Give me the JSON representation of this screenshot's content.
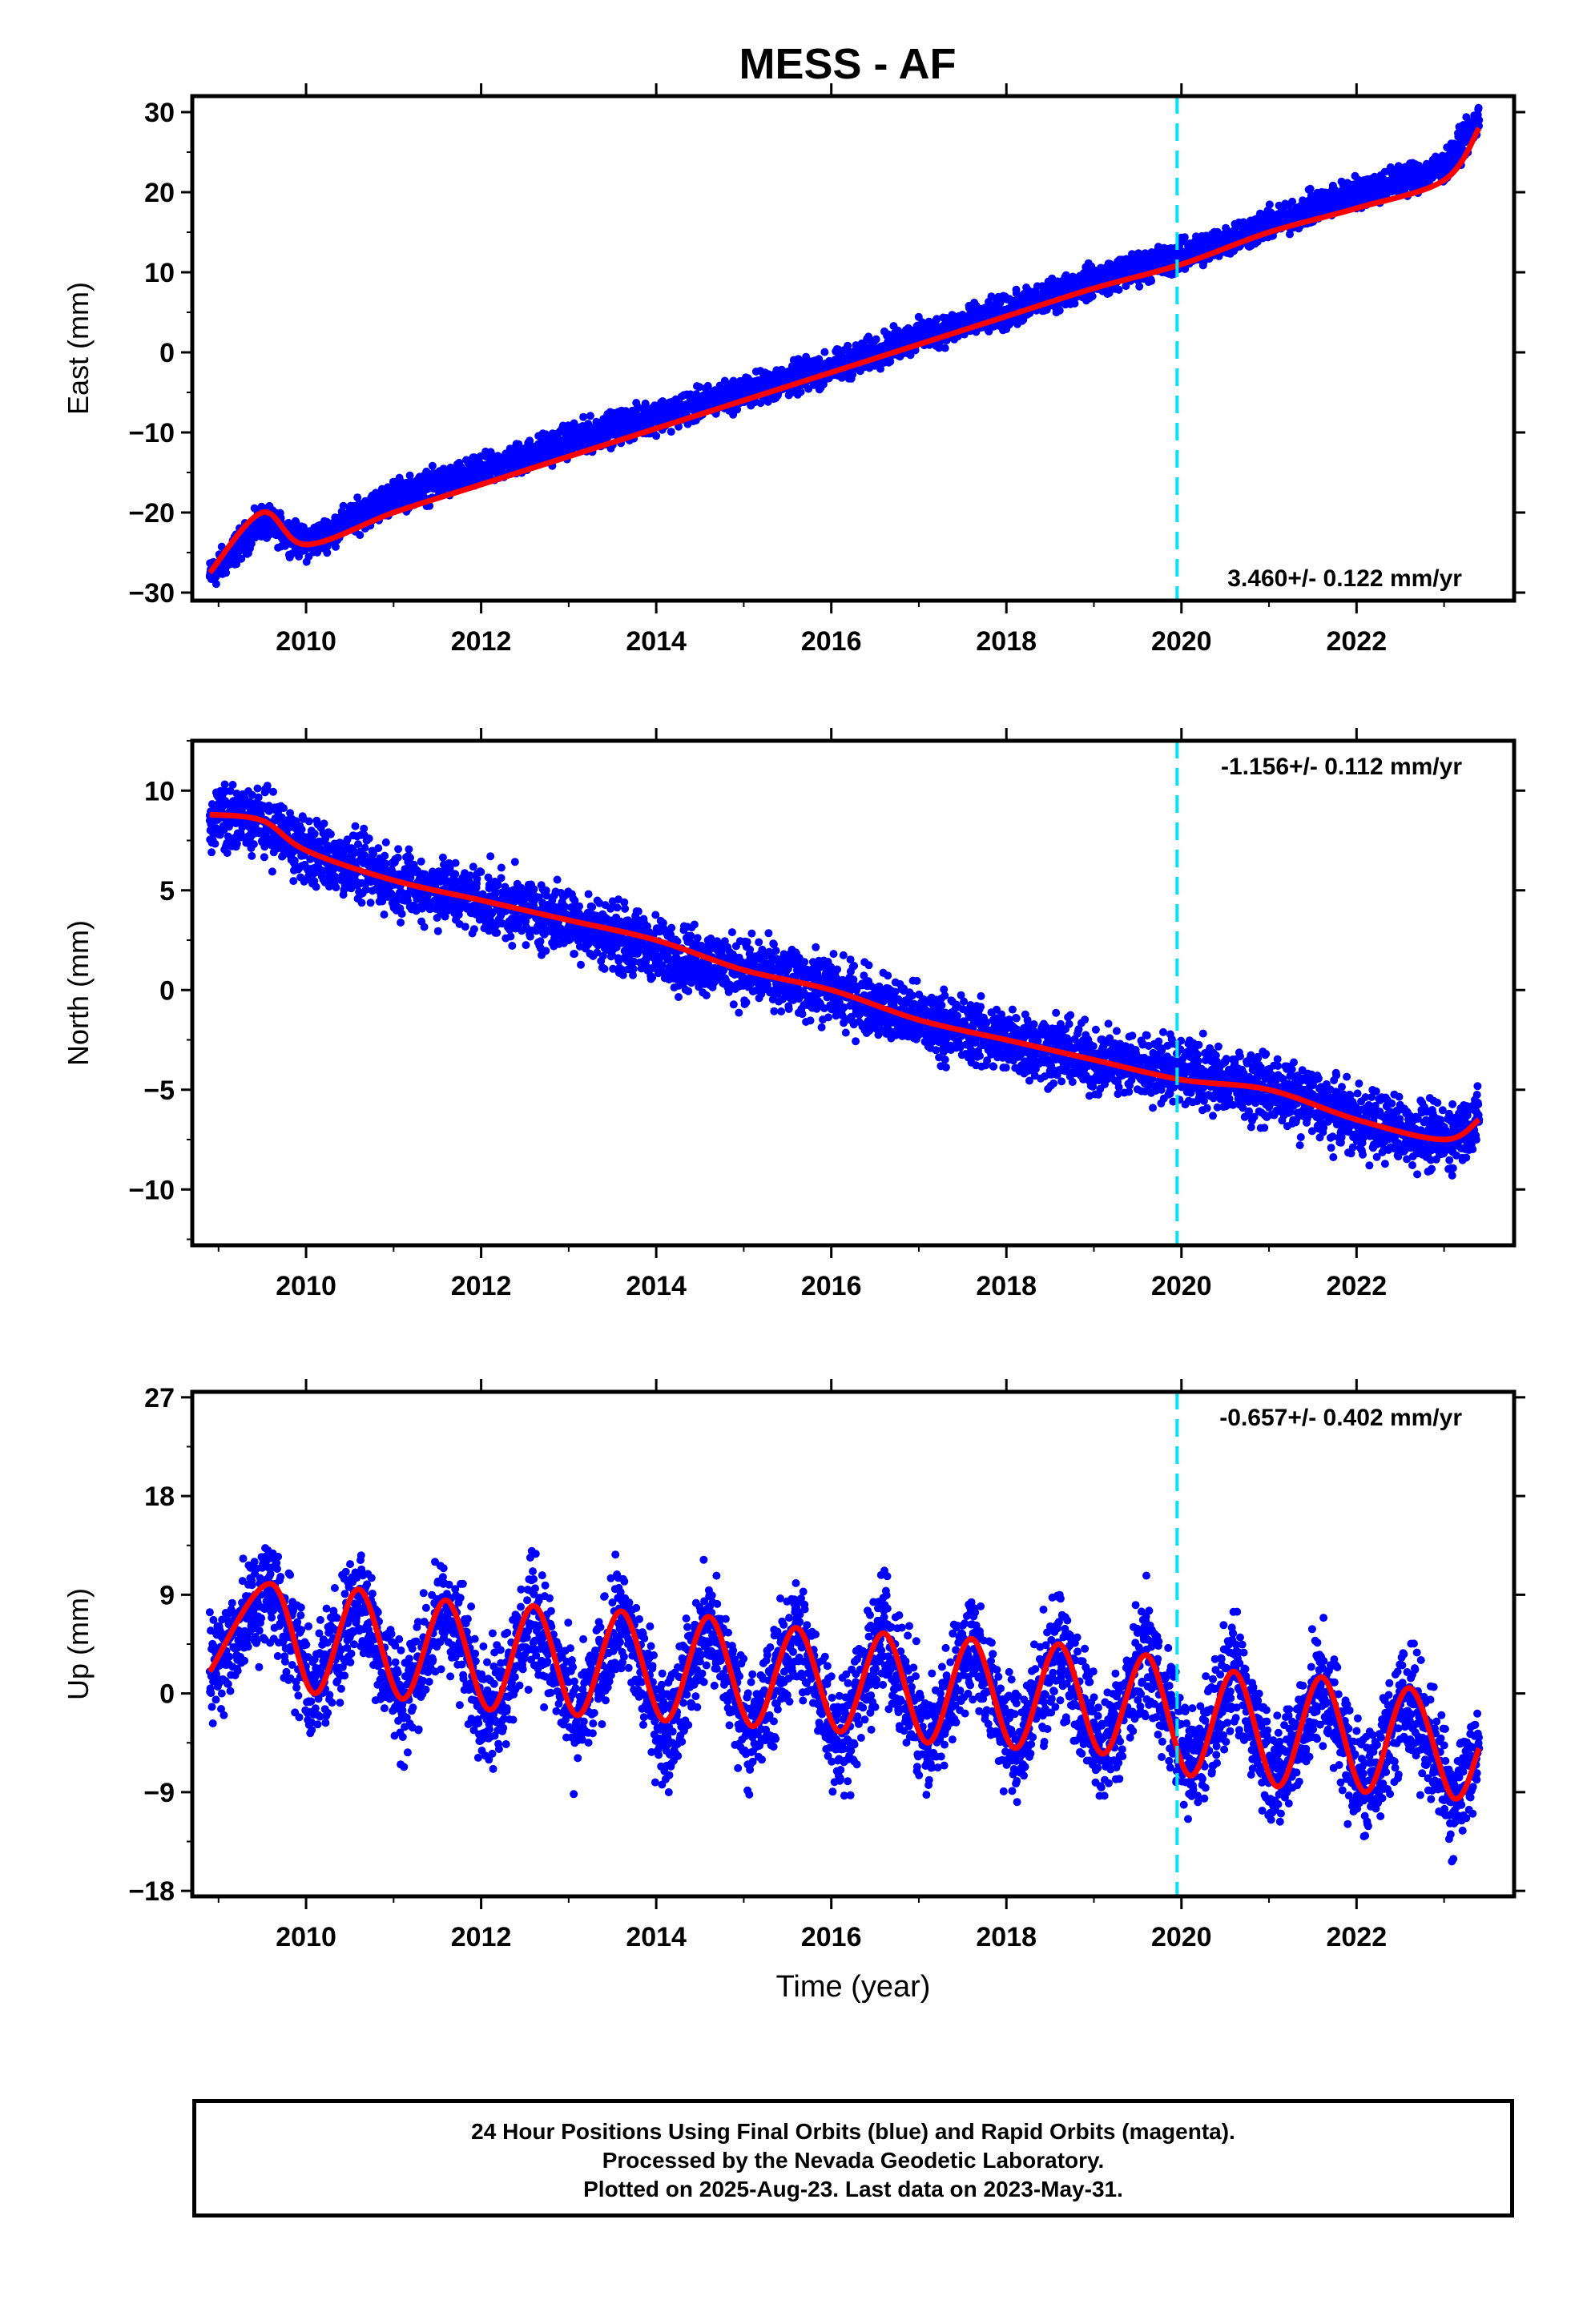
{
  "title": "MESS - AF",
  "colors": {
    "data_points": "#0000ff",
    "model_fit": "#ff0000",
    "marker_line": "#00e5ff",
    "axes": "#000000"
  },
  "chart_data": [
    {
      "type": "scatter",
      "component": "East",
      "ylabel": "East (mm)",
      "xlabel": "",
      "xlim": [
        2008.7,
        2023.8
      ],
      "ylim": [
        -31,
        32
      ],
      "yticks": [
        -30,
        -20,
        -10,
        0,
        10,
        20,
        30
      ],
      "ytick_labels": [
        "−30",
        "−20",
        "−10",
        "0",
        "10",
        "20",
        "30"
      ],
      "xticks": [
        2010,
        2012,
        2014,
        2016,
        2018,
        2020,
        2022
      ],
      "xtick_labels": [
        "2010",
        "2012",
        "2014",
        "2016",
        "2018",
        "2020",
        "2022"
      ],
      "vline_x": 2019.95,
      "rate_label": "3.460+/- 0.122 mm/yr",
      "rate_position": "bottom-right",
      "series": [
        {
          "role": "daily positions",
          "x": [
            2008.9,
            2009.5,
            2010.0,
            2011.0,
            2012.0,
            2013.0,
            2014.0,
            2015.0,
            2016.0,
            2017.0,
            2018.0,
            2019.0,
            2020.0,
            2021.0,
            2022.0,
            2023.0,
            2023.4
          ],
          "y": [
            -28,
            -21,
            -24,
            -18,
            -15,
            -11,
            -8,
            -5,
            -2,
            2,
            5,
            9,
            12,
            16,
            20,
            23,
            29
          ]
        },
        {
          "role": "model fit",
          "x": [
            2008.9,
            2009.5,
            2010.0,
            2011.0,
            2012.0,
            2013.0,
            2014.0,
            2015.0,
            2016.0,
            2017.0,
            2018.0,
            2019.0,
            2020.0,
            2021.0,
            2022.0,
            2023.0,
            2023.4
          ],
          "y": [
            -27.5,
            -20,
            -24,
            -20,
            -16.5,
            -13,
            -9.5,
            -6,
            -2.5,
            1,
            4.5,
            8,
            11,
            15,
            18,
            21.5,
            28
          ]
        }
      ]
    },
    {
      "type": "scatter",
      "component": "North",
      "ylabel": "North (mm)",
      "xlabel": "",
      "xlim": [
        2008.7,
        2023.8
      ],
      "ylim": [
        -12.8,
        12.5
      ],
      "yticks": [
        -10,
        -5,
        0,
        5,
        10
      ],
      "ytick_labels": [
        "−10",
        "−5",
        "0",
        "5",
        "10"
      ],
      "xticks": [
        2010,
        2012,
        2014,
        2016,
        2018,
        2020,
        2022
      ],
      "xtick_labels": [
        "2010",
        "2012",
        "2014",
        "2016",
        "2018",
        "2020",
        "2022"
      ],
      "vline_x": 2019.95,
      "rate_label": "-1.156+/- 0.112 mm/yr",
      "rate_position": "top-right",
      "series": [
        {
          "role": "daily positions",
          "x": [
            2008.9,
            2009.5,
            2010.0,
            2011.0,
            2012.0,
            2013.0,
            2014.0,
            2015.0,
            2016.0,
            2017.0,
            2018.0,
            2019.0,
            2020.0,
            2021.0,
            2022.0,
            2023.0,
            2023.4
          ],
          "y": [
            8.5,
            8.5,
            7,
            5.5,
            4.5,
            3.5,
            2,
            1,
            0,
            -1.5,
            -2.5,
            -3.5,
            -4,
            -5,
            -6.5,
            -7.5,
            -6.5
          ]
        },
        {
          "role": "model fit",
          "x": [
            2008.9,
            2009.5,
            2010.0,
            2011.0,
            2012.0,
            2013.0,
            2014.0,
            2015.0,
            2016.0,
            2017.0,
            2018.0,
            2019.0,
            2020.0,
            2021.0,
            2022.0,
            2023.0,
            2023.4
          ],
          "y": [
            8.8,
            8.5,
            7,
            5.5,
            4.5,
            3.5,
            2.5,
            1,
            0,
            -1.5,
            -2.5,
            -3.5,
            -4.5,
            -5,
            -6.5,
            -7.5,
            -6.5
          ]
        }
      ]
    },
    {
      "type": "scatter",
      "component": "Up",
      "ylabel": "Up (mm)",
      "xlabel": "Time (year)",
      "xlim": [
        2008.7,
        2023.8
      ],
      "ylim": [
        -18.5,
        27.5
      ],
      "yticks": [
        -18,
        -9,
        0,
        9,
        18,
        27
      ],
      "ytick_labels": [
        "−18",
        "−9",
        "0",
        "9",
        "18",
        "27"
      ],
      "xticks": [
        2010,
        2012,
        2014,
        2016,
        2018,
        2020,
        2022
      ],
      "xtick_labels": [
        "2010",
        "2012",
        "2014",
        "2016",
        "2018",
        "2020",
        "2022"
      ],
      "vline_x": 2019.95,
      "rate_label": "-0.657+/- 0.402 mm/yr",
      "rate_position": "top-right",
      "series": [
        {
          "role": "daily positions",
          "x": [
            2008.9,
            2009.6,
            2010.1,
            2010.6,
            2011.1,
            2011.6,
            2012.1,
            2012.6,
            2013.1,
            2013.6,
            2014.1,
            2014.6,
            2015.1,
            2015.6,
            2016.1,
            2016.6,
            2017.1,
            2017.6,
            2018.1,
            2018.6,
            2019.1,
            2019.6,
            2020.1,
            2020.6,
            2021.1,
            2021.6,
            2022.1,
            2022.6,
            2023.1,
            2023.4
          ],
          "y": [
            2,
            10,
            0,
            9,
            -1,
            8,
            -2,
            7.5,
            -3,
            7,
            -3.5,
            6.5,
            -4,
            6,
            -4.5,
            5.5,
            -5,
            5,
            -5.5,
            4.5,
            -6,
            4,
            -7,
            2,
            -8,
            1,
            -9,
            0,
            -9.5,
            -5
          ]
        },
        {
          "role": "model fit",
          "x": [
            2008.9,
            2009.6,
            2010.1,
            2010.6,
            2011.1,
            2011.6,
            2012.1,
            2012.6,
            2013.1,
            2013.6,
            2014.1,
            2014.6,
            2015.1,
            2015.6,
            2016.1,
            2016.6,
            2017.1,
            2017.6,
            2018.1,
            2018.6,
            2019.1,
            2019.6,
            2020.1,
            2020.6,
            2021.1,
            2021.6,
            2022.1,
            2022.6,
            2023.1,
            2023.4
          ],
          "y": [
            2,
            10,
            0,
            9.5,
            -0.5,
            8.5,
            -1.5,
            8,
            -2,
            7.5,
            -2.5,
            7,
            -3,
            6,
            -3.5,
            5.5,
            -4.5,
            5,
            -5,
            4.5,
            -5.5,
            3.5,
            -7.5,
            2,
            -8.5,
            1.5,
            -9,
            0.5,
            -9.5,
            -5
          ]
        }
      ]
    }
  ],
  "caption": {
    "line1": "24 Hour Positions Using Final Orbits (blue) and Rapid Orbits (magenta).",
    "line2": "Processed by the Nevada Geodetic Laboratory.",
    "line3": "Plotted on 2025-Aug-23. Last data on 2023-May-31."
  }
}
